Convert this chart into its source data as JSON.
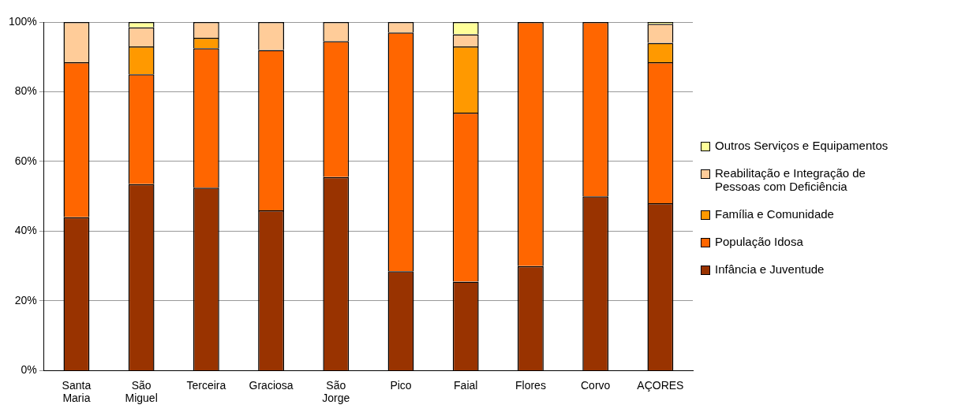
{
  "chart_data": {
    "type": "bar",
    "stacked": true,
    "categories": [
      "Santa Maria",
      "São Miguel",
      "Terceira",
      "Graciosa",
      "São Jorge",
      "Pico",
      "Faial",
      "Flores",
      "Corvo",
      "AÇORES"
    ],
    "series": [
      {
        "name": "Infância e Juventude",
        "color": "#993300",
        "values": [
          44,
          53.5,
          52.5,
          46,
          55.5,
          28.5,
          25.5,
          30,
          50,
          48
        ]
      },
      {
        "name": "População Idosa",
        "color": "#ff6600",
        "values": [
          44.5,
          31.5,
          40,
          46,
          39,
          68.5,
          48.5,
          70,
          50,
          40.5
        ]
      },
      {
        "name": "Família e Comunidade",
        "color": "#ff9900",
        "values": [
          0,
          8,
          3,
          0,
          0,
          0,
          19,
          0,
          0,
          5.5
        ]
      },
      {
        "name": "Reabilitação e Integração de Pessoas com Deficiência",
        "color": "#ffcc99",
        "values": [
          11.5,
          5.5,
          4.5,
          8,
          5.5,
          3,
          3.5,
          0,
          0,
          5.5
        ]
      },
      {
        "name": "Outros Serviços e Equipamentos",
        "color": "#ffff99",
        "values": [
          0,
          1.5,
          0,
          0,
          0,
          0,
          3.5,
          0,
          0,
          0.5
        ]
      }
    ],
    "ylim": [
      0,
      100
    ],
    "yticks": [
      {
        "value": 0,
        "label": "0%"
      },
      {
        "value": 20,
        "label": "20%"
      },
      {
        "value": 40,
        "label": "40%"
      },
      {
        "value": 60,
        "label": "60%"
      },
      {
        "value": 80,
        "label": "80%"
      },
      {
        "value": 100,
        "label": "100%"
      }
    ],
    "grid": "y",
    "legend": "right"
  }
}
